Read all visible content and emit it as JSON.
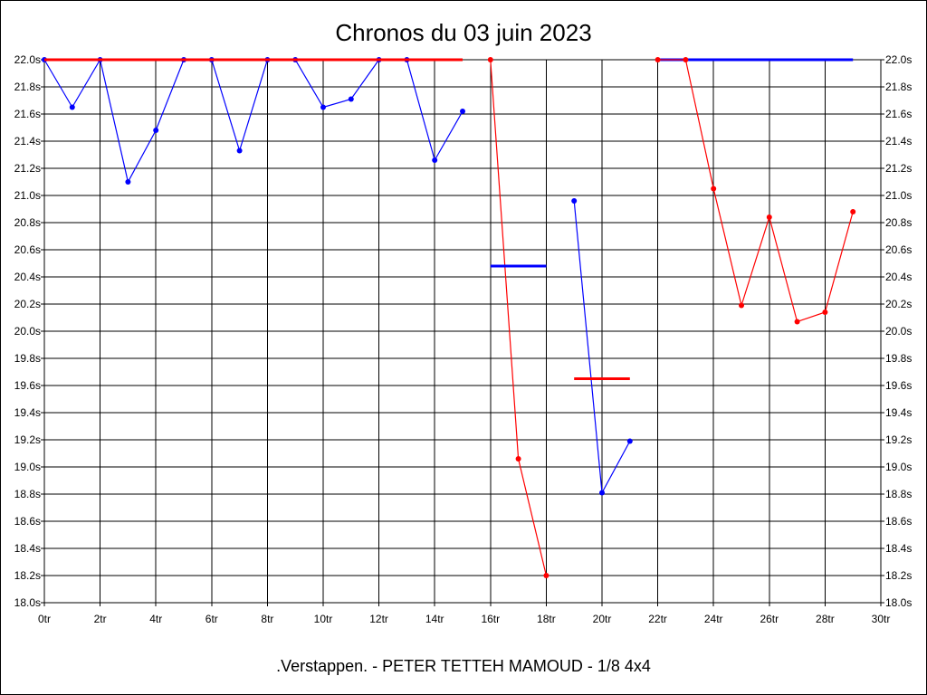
{
  "chart_data": {
    "type": "line",
    "title": "Chronos du 03 juin 2023",
    "subtitle": ".Verstappen. - PETER TETTEH MAMOUD - 1/8 4x4",
    "xlabel": "",
    "ylabel": "",
    "xlim": [
      0,
      30
    ],
    "ylim": [
      18.0,
      22.0
    ],
    "grid": true,
    "x_ticks": [
      0,
      2,
      4,
      6,
      8,
      10,
      12,
      14,
      16,
      18,
      20,
      22,
      24,
      26,
      28,
      30
    ],
    "x_tick_labels": [
      "0tr",
      "2tr",
      "4tr",
      "6tr",
      "8tr",
      "10tr",
      "12tr",
      "14tr",
      "16tr",
      "18tr",
      "20tr",
      "22tr",
      "24tr",
      "26tr",
      "28tr",
      "30tr"
    ],
    "y_ticks": [
      18.0,
      18.2,
      18.4,
      18.6,
      18.8,
      19.0,
      19.2,
      19.4,
      19.6,
      19.8,
      20.0,
      20.2,
      20.4,
      20.6,
      20.8,
      21.0,
      21.2,
      21.4,
      21.6,
      21.8,
      22.0
    ],
    "y_tick_labels": [
      "18.0s",
      "18.2s",
      "18.4s",
      "18.6s",
      "18.8s",
      "19.0s",
      "19.2s",
      "19.4s",
      "19.6s",
      "19.8s",
      "20.0s",
      "20.2s",
      "20.4s",
      "20.6s",
      "20.8s",
      "21.0s",
      "21.2s",
      "21.4s",
      "21.6s",
      "21.8s",
      "22.0s"
    ],
    "series": [
      {
        "color": "#0000ff",
        "x": [
          0,
          1,
          2,
          3,
          4,
          5,
          6,
          7,
          8,
          9,
          10,
          11,
          12,
          13,
          14,
          15
        ],
        "y": [
          22.0,
          21.65,
          22.0,
          21.1,
          21.48,
          22.0,
          22.0,
          21.33,
          22.0,
          22.0,
          21.65,
          21.71,
          22.0,
          22.0,
          21.26,
          21.62
        ],
        "avg": {
          "from": 22,
          "to": 29,
          "value": 22.0
        }
      },
      {
        "color": "#ff0000",
        "x": [
          16,
          17,
          18
        ],
        "y": [
          22.0,
          19.06,
          18.2
        ],
        "avg": {
          "from": 0,
          "to": 15,
          "value": 22.0
        }
      },
      {
        "color": "#0000ff",
        "x": [
          19,
          20,
          21
        ],
        "y": [
          20.96,
          18.81,
          19.19
        ],
        "avg": {
          "from": 16,
          "to": 18,
          "value": 20.48
        }
      },
      {
        "color": "#ff0000",
        "x": [
          22,
          23,
          24,
          25,
          26,
          27,
          28,
          29
        ],
        "y": [
          22.0,
          22.0,
          21.05,
          20.19,
          20.84,
          20.07,
          20.14,
          20.88
        ],
        "avg": {
          "from": 19,
          "to": 21,
          "value": 19.65
        }
      }
    ]
  }
}
